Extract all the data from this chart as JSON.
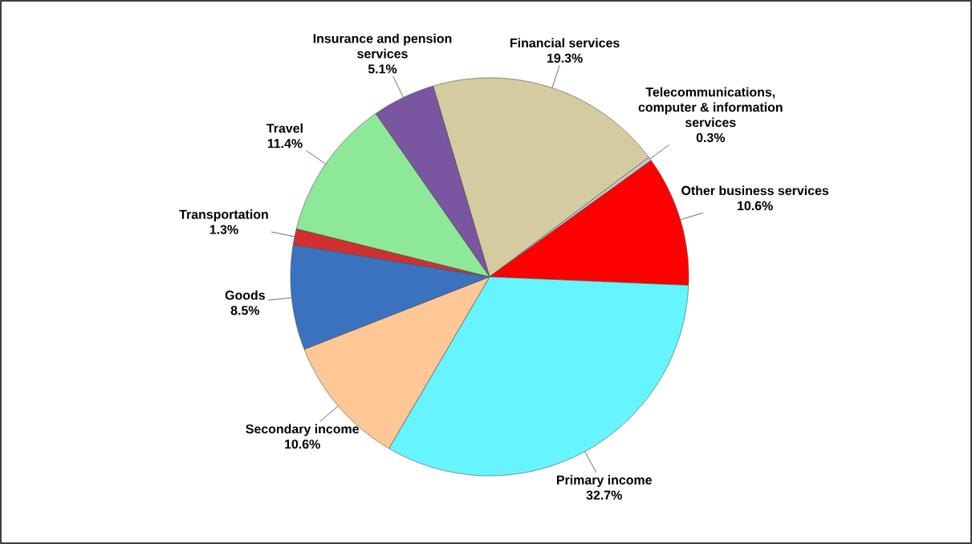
{
  "chart_data": {
    "type": "pie",
    "categories": [
      "Financial services",
      "Telecommunications, computer & information services",
      "Other business services",
      "Primary income",
      "Secondary income",
      "Goods",
      "Transportation",
      "Travel",
      "Insurance and pension services"
    ],
    "values": [
      19.3,
      0.3,
      10.6,
      32.7,
      10.6,
      8.5,
      1.3,
      11.4,
      5.1
    ],
    "value_labels": [
      "19.3%",
      "0.3%",
      "10.6%",
      "32.7%",
      "10.6%",
      "8.5%",
      "1.3%",
      "11.4%",
      "5.1%"
    ],
    "colors": [
      "#d4cba0",
      "#c8c8c8",
      "#ff0000",
      "#66f5ff",
      "#fdc896",
      "#3a72c0",
      "#d03030",
      "#8ee89a",
      "#7a55a0"
    ]
  }
}
